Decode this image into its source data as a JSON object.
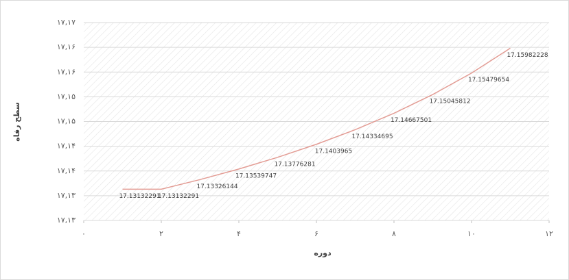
{
  "chart_data": {
    "type": "line",
    "x_label": "دوره",
    "y_label": "سطح رفاه",
    "x": [
      1,
      2,
      3,
      4,
      5,
      6,
      7,
      8,
      9,
      10,
      11
    ],
    "series": [
      {
        "name": "سطح رفاه",
        "color": "#e39c94",
        "values": [
          17.13132291,
          17.13132291,
          17.13326144,
          17.13539747,
          17.13776281,
          17.1403965,
          17.14334695,
          17.14667501,
          17.15045812,
          17.15479654,
          17.15982228
        ]
      }
    ],
    "xlim": [
      0,
      12
    ],
    "xticks": [
      {
        "value": 0,
        "label": "۰"
      },
      {
        "value": 2,
        "label": "۲"
      },
      {
        "value": 4,
        "label": "۴"
      },
      {
        "value": 6,
        "label": "۶"
      },
      {
        "value": 8,
        "label": "۸"
      },
      {
        "value": 10,
        "label": "۱۰"
      },
      {
        "value": 12,
        "label": "۱۲"
      }
    ],
    "ylim": [
      17.125,
      17.165
    ],
    "yticks": [
      {
        "value": 17.125,
        "label": "۱۷,۱۳"
      },
      {
        "value": 17.13,
        "label": "۱۷,۱۳"
      },
      {
        "value": 17.135,
        "label": "۱۷,۱۴"
      },
      {
        "value": 17.14,
        "label": "۱۷,۱۴"
      },
      {
        "value": 17.145,
        "label": "۱۷,۱۵"
      },
      {
        "value": 17.15,
        "label": "۱۷,۱۵"
      },
      {
        "value": 17.155,
        "label": "۱۷,۱۶"
      },
      {
        "value": 17.16,
        "label": "۱۷,۱۶"
      },
      {
        "value": 17.165,
        "label": "۱۷,۱۷"
      }
    ],
    "grid": true
  }
}
